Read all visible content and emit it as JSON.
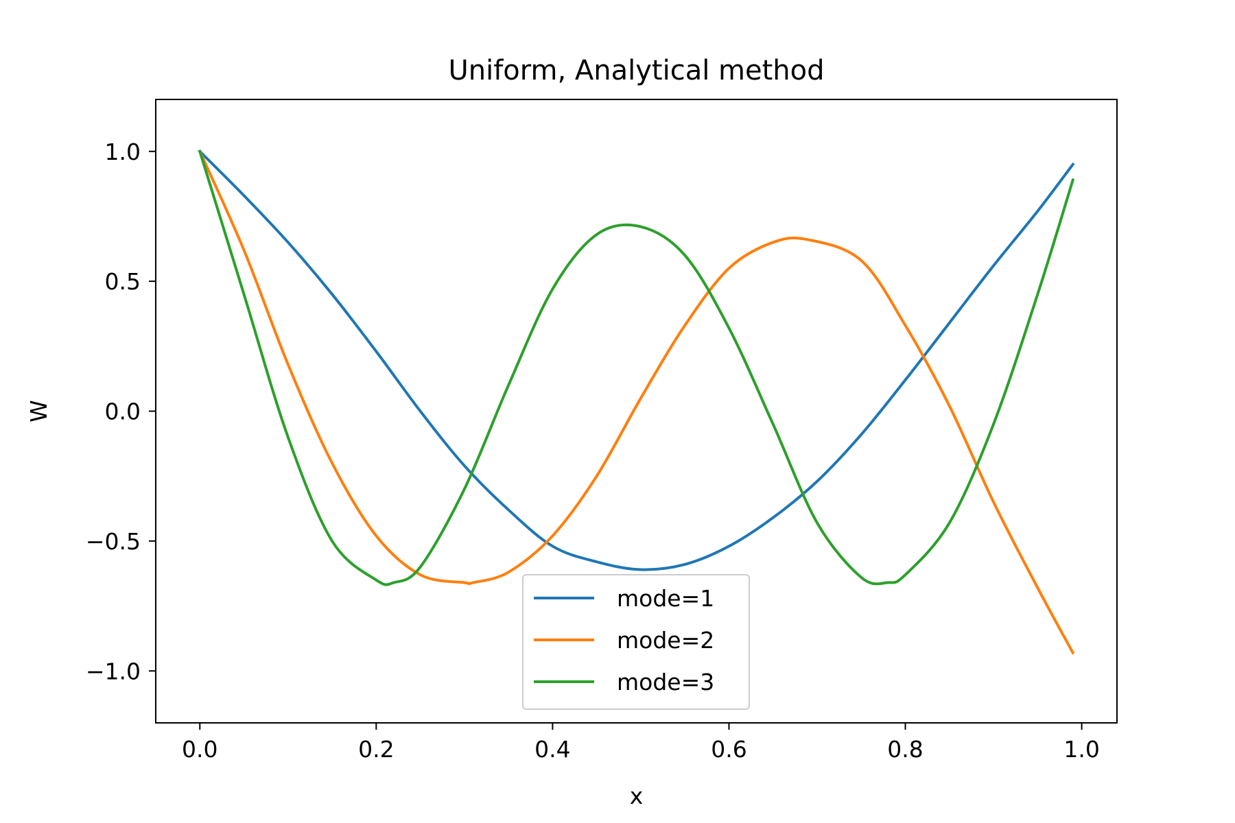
{
  "chart_data": {
    "type": "line",
    "title": "Uniform, Analytical method",
    "xlabel": "x",
    "ylabel": "W",
    "xlim": [
      -0.05,
      1.04
    ],
    "ylim": [
      -1.2,
      1.2
    ],
    "xticks": [
      0.0,
      0.2,
      0.4,
      0.6,
      0.8,
      1.0
    ],
    "xtick_labels": [
      "0.0",
      "0.2",
      "0.4",
      "0.6",
      "0.8",
      "1.0"
    ],
    "yticks": [
      1.0,
      0.5,
      0.0,
      -0.5,
      -1.0
    ],
    "ytick_labels": [
      "1.0",
      "0.5",
      "0.0",
      "−0.5",
      "−1.0"
    ],
    "grid": false,
    "legend": "lower center",
    "series": [
      {
        "name": "mode=1",
        "color": "#1f77b4",
        "x": [
          0.0,
          0.05,
          0.1,
          0.15,
          0.2,
          0.25,
          0.3,
          0.35,
          0.4,
          0.45,
          0.5,
          0.55,
          0.6,
          0.65,
          0.7,
          0.75,
          0.8,
          0.85,
          0.9,
          0.95,
          0.99
        ],
        "y": [
          1.0,
          0.83,
          0.65,
          0.45,
          0.23,
          0.0,
          -0.21,
          -0.38,
          -0.52,
          -0.58,
          -0.61,
          -0.59,
          -0.52,
          -0.41,
          -0.27,
          -0.09,
          0.12,
          0.34,
          0.56,
          0.77,
          0.95
        ]
      },
      {
        "name": "mode=2",
        "color": "#ff7f0e",
        "x": [
          0.0,
          0.05,
          0.1,
          0.15,
          0.2,
          0.25,
          0.3,
          0.31,
          0.35,
          0.4,
          0.45,
          0.5,
          0.55,
          0.6,
          0.65,
          0.69,
          0.75,
          0.8,
          0.85,
          0.9,
          0.95,
          0.99
        ],
        "y": [
          1.0,
          0.62,
          0.18,
          -0.2,
          -0.48,
          -0.63,
          -0.66,
          -0.66,
          -0.62,
          -0.48,
          -0.25,
          0.05,
          0.33,
          0.55,
          0.65,
          0.66,
          0.58,
          0.33,
          0.02,
          -0.35,
          -0.68,
          -0.93
        ]
      },
      {
        "name": "mode=3",
        "color": "#2ca02c",
        "x": [
          0.0,
          0.05,
          0.1,
          0.15,
          0.2,
          0.22,
          0.25,
          0.3,
          0.35,
          0.4,
          0.45,
          0.5,
          0.55,
          0.6,
          0.65,
          0.7,
          0.75,
          0.78,
          0.8,
          0.85,
          0.9,
          0.95,
          0.99
        ],
        "y": [
          1.0,
          0.45,
          -0.1,
          -0.5,
          -0.65,
          -0.66,
          -0.6,
          -0.3,
          0.1,
          0.47,
          0.68,
          0.71,
          0.6,
          0.32,
          -0.05,
          -0.43,
          -0.64,
          -0.66,
          -0.63,
          -0.43,
          -0.05,
          0.45,
          0.89
        ]
      }
    ]
  }
}
